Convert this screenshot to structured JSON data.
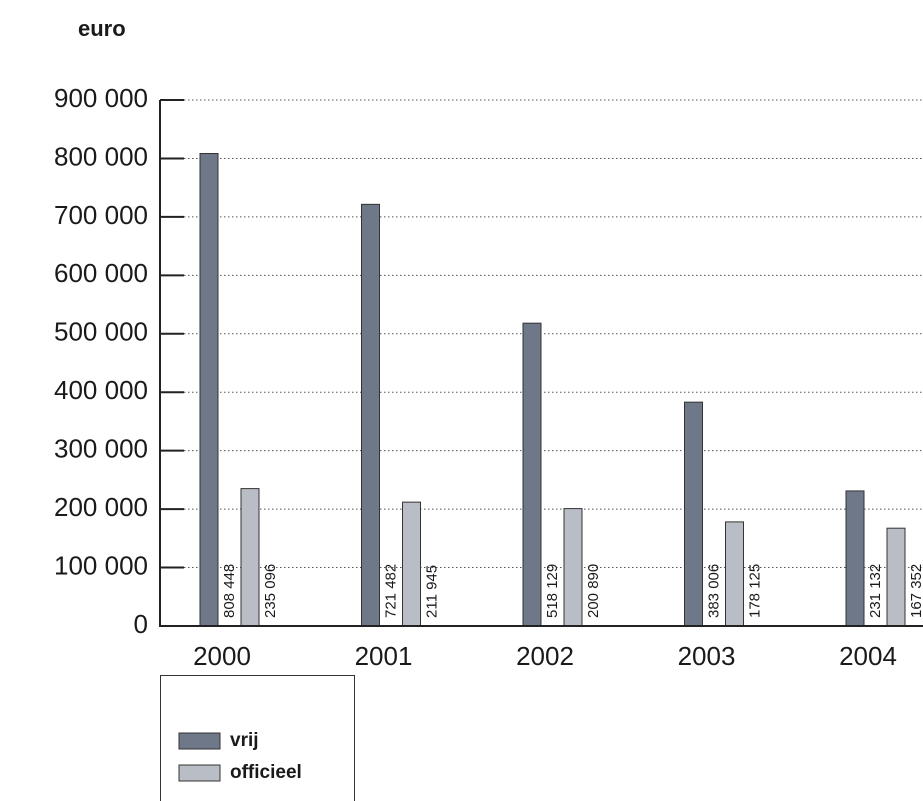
{
  "chart_data": {
    "type": "bar",
    "unit_label": "euro",
    "categories": [
      "2000",
      "2001",
      "2002",
      "2003",
      "2004"
    ],
    "series": [
      {
        "name": "vrij",
        "color": "#6e7888",
        "values": [
          808448,
          721482,
          518129,
          383006,
          231132
        ],
        "value_labels": [
          "808 448",
          "721 482",
          "518 129",
          "383 006",
          "231 132"
        ]
      },
      {
        "name": "officieel",
        "color": "#b9bdc5",
        "values": [
          235096,
          211945,
          200890,
          178125,
          167352
        ],
        "value_labels": [
          "235 096",
          "211 945",
          "200 890",
          "178 125",
          "167 352"
        ]
      }
    ],
    "ylim": [
      0,
      900000
    ],
    "yticks": [
      0,
      {
        "value": 100000,
        "label": "100 000"
      },
      {
        "value": 200000,
        "label": "200 000"
      },
      {
        "value": 300000,
        "label": "300 000"
      },
      {
        "value": 400000,
        "label": "400 000"
      },
      {
        "value": 500000,
        "label": "500 000"
      },
      {
        "value": 600000,
        "label": "600 000"
      },
      {
        "value": 700000,
        "label": "700 000"
      },
      {
        "value": 800000,
        "label": "800 000"
      },
      {
        "value": 900000,
        "label": "900 000"
      }
    ],
    "grid": true
  }
}
